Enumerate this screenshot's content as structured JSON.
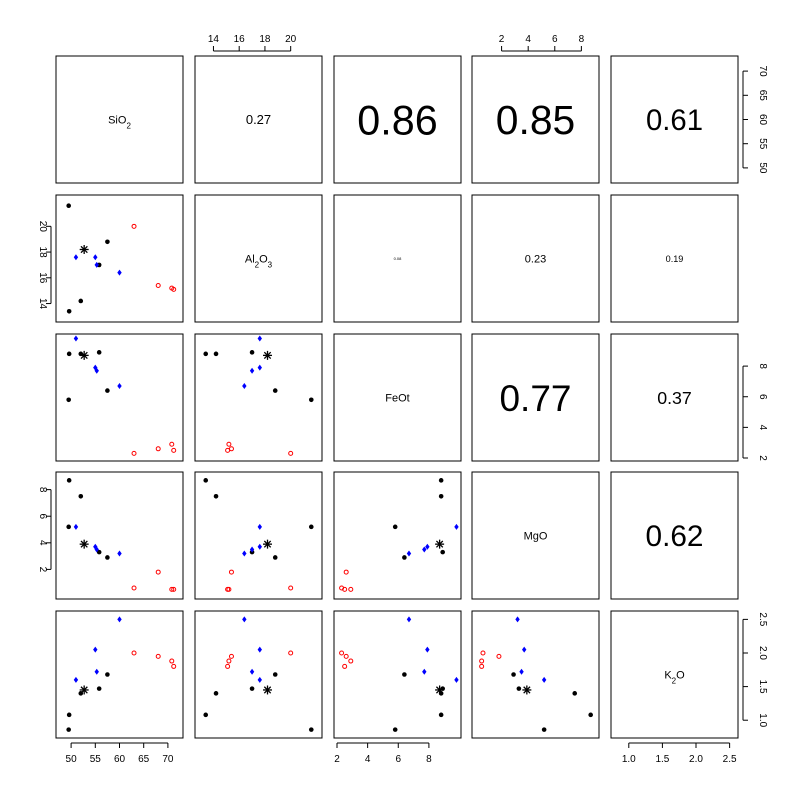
{
  "chart_data": {
    "type": "scatter",
    "title": "",
    "variables": [
      {
        "key": "SiO2",
        "label": "SiO",
        "sub": "2",
        "label_suffix": "",
        "range": [
          47.5,
          72.5
        ],
        "ticks": [
          50,
          55,
          60,
          65,
          70
        ]
      },
      {
        "key": "Al2O3",
        "label": "Al",
        "sub": "2",
        "label_suffix": "O3",
        "range": [
          12.8,
          22.2
        ],
        "ticks": [
          14,
          16,
          18,
          20
        ]
      },
      {
        "key": "FeOt",
        "label": "FeOt",
        "sub": "",
        "label_suffix": "",
        "range": [
          2.0,
          9.9
        ],
        "ticks": [
          2,
          4,
          6,
          8
        ]
      },
      {
        "key": "MgO",
        "label": "MgO",
        "sub": "",
        "label_suffix": "",
        "range": [
          0.0,
          9.1
        ],
        "ticks": [
          2,
          4,
          6,
          8
        ]
      },
      {
        "key": "K2O",
        "label": "K",
        "sub": "2",
        "label_suffix": "O",
        "range": [
          0.78,
          2.58
        ],
        "ticks": [
          1.0,
          1.5,
          2.0,
          2.5
        ]
      }
    ],
    "correlations": [
      {
        "row": 0,
        "col": 1,
        "text": "0.27",
        "value": 0.27
      },
      {
        "row": 0,
        "col": 2,
        "text": "0.86",
        "value": 0.86
      },
      {
        "row": 0,
        "col": 3,
        "text": "0.85",
        "value": 0.85
      },
      {
        "row": 0,
        "col": 4,
        "text": "0.61",
        "value": 0.61
      },
      {
        "row": 1,
        "col": 2,
        "text": "0.08",
        "value": 0.08
      },
      {
        "row": 1,
        "col": 3,
        "text": "0.23",
        "value": 0.23
      },
      {
        "row": 1,
        "col": 4,
        "text": "0.19",
        "value": 0.19
      },
      {
        "row": 2,
        "col": 3,
        "text": "0.77",
        "value": 0.77
      },
      {
        "row": 2,
        "col": 4,
        "text": "0.37",
        "value": 0.37
      },
      {
        "row": 3,
        "col": 4,
        "text": "0.62",
        "value": 0.62
      }
    ],
    "groups": [
      {
        "name": "",
        "color": "#000000",
        "marker": "dot"
      },
      {
        "name": "",
        "color": "#0000ff",
        "marker": "diamond"
      },
      {
        "name": "",
        "color": "#ff0000",
        "marker": "circle"
      },
      {
        "name": "",
        "color": "#000000",
        "marker": "star"
      }
    ],
    "samples": [
      {
        "group": 0,
        "SiO2": 49.5,
        "Al2O3": 21.6,
        "FeOt": 5.8,
        "MgO": 5.2,
        "K2O": 0.86
      },
      {
        "group": 0,
        "SiO2": 49.6,
        "Al2O3": 13.4,
        "FeOt": 8.8,
        "MgO": 8.7,
        "K2O": 1.08
      },
      {
        "group": 0,
        "SiO2": 52.0,
        "Al2O3": 14.2,
        "FeOt": 8.8,
        "MgO": 7.5,
        "K2O": 1.4
      },
      {
        "group": 0,
        "SiO2": 55.8,
        "Al2O3": 17.0,
        "FeOt": 8.9,
        "MgO": 3.3,
        "K2O": 1.47
      },
      {
        "group": 0,
        "SiO2": 57.5,
        "Al2O3": 18.8,
        "FeOt": 6.4,
        "MgO": 2.9,
        "K2O": 1.68
      },
      {
        "group": 1,
        "SiO2": 51.0,
        "Al2O3": 17.6,
        "FeOt": 9.8,
        "MgO": 5.2,
        "K2O": 1.6
      },
      {
        "group": 1,
        "SiO2": 55.0,
        "Al2O3": 17.6,
        "FeOt": 7.9,
        "MgO": 3.7,
        "K2O": 2.05
      },
      {
        "group": 1,
        "SiO2": 55.3,
        "Al2O3": 17.0,
        "FeOt": 7.7,
        "MgO": 3.5,
        "K2O": 1.72
      },
      {
        "group": 1,
        "SiO2": 60.0,
        "Al2O3": 16.4,
        "FeOt": 6.7,
        "MgO": 3.2,
        "K2O": 2.5
      },
      {
        "group": 2,
        "SiO2": 63.0,
        "Al2O3": 20.0,
        "FeOt": 2.3,
        "MgO": 0.6,
        "K2O": 2.0
      },
      {
        "group": 2,
        "SiO2": 68.0,
        "Al2O3": 15.4,
        "FeOt": 2.6,
        "MgO": 1.8,
        "K2O": 1.95
      },
      {
        "group": 2,
        "SiO2": 70.8,
        "Al2O3": 15.2,
        "FeOt": 2.9,
        "MgO": 0.5,
        "K2O": 1.88
      },
      {
        "group": 2,
        "SiO2": 71.2,
        "Al2O3": 15.1,
        "FeOt": 2.5,
        "MgO": 0.5,
        "K2O": 1.8
      },
      {
        "group": 3,
        "SiO2": 52.7,
        "Al2O3": 18.2,
        "FeOt": 8.7,
        "MgO": 3.9,
        "K2O": 1.45
      }
    ]
  }
}
